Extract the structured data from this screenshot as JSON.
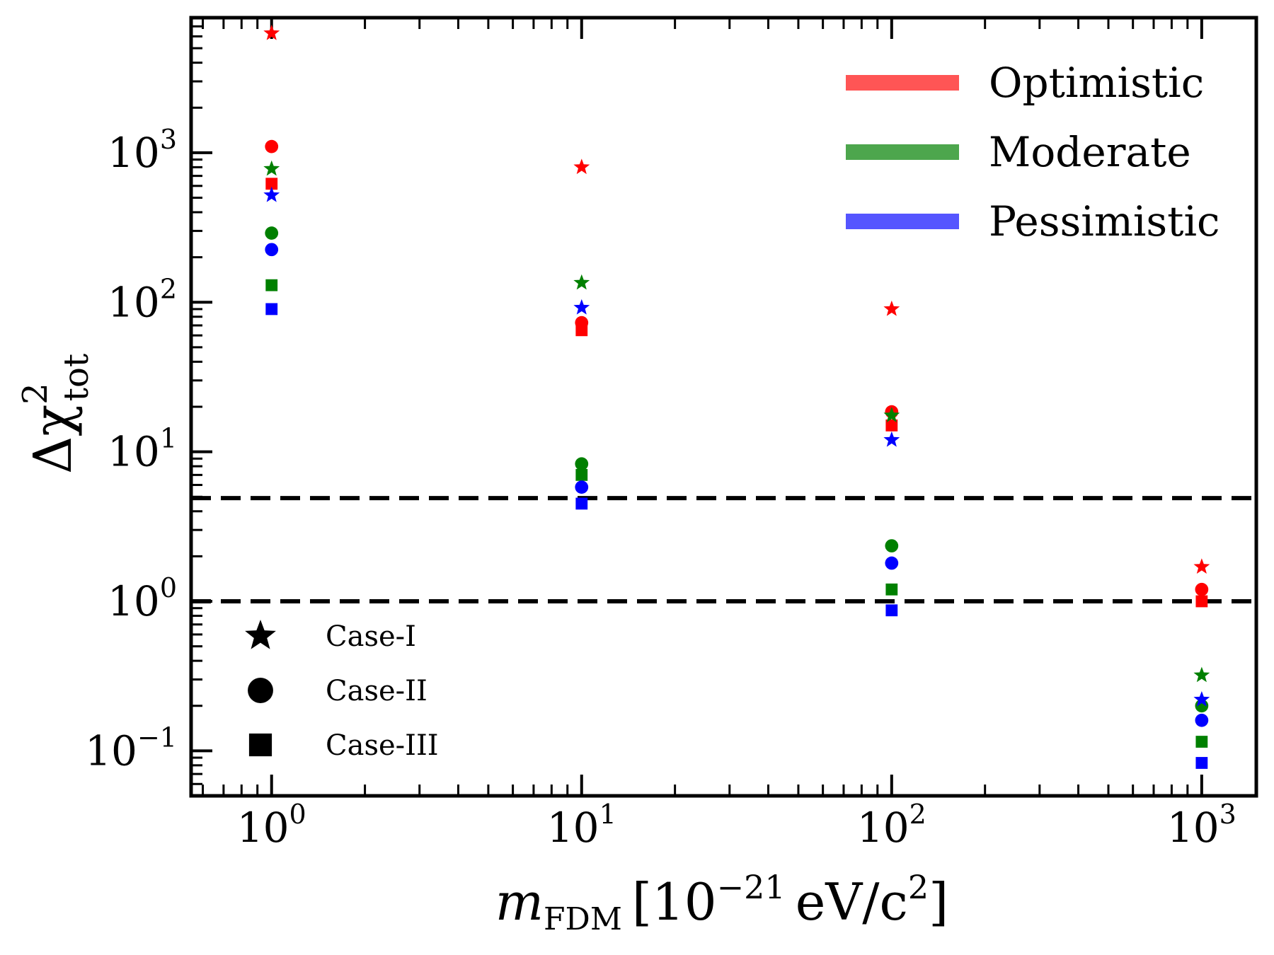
{
  "chart_data": {
    "type": "scatter",
    "xscale": "log",
    "yscale": "log",
    "xlim": [
      0.55,
      1500
    ],
    "ylim": [
      0.05,
      8000
    ],
    "x_ticks": [
      {
        "value": 1,
        "base": "10",
        "exp": "0"
      },
      {
        "value": 10,
        "base": "10",
        "exp": "1"
      },
      {
        "value": 100,
        "base": "10",
        "exp": "2"
      },
      {
        "value": 1000,
        "base": "10",
        "exp": "3"
      }
    ],
    "y_ticks": [
      {
        "value": 0.1,
        "base": "10",
        "exp": "−1"
      },
      {
        "value": 1,
        "base": "10",
        "exp": "0"
      },
      {
        "value": 10,
        "base": "10",
        "exp": "1"
      },
      {
        "value": 100,
        "base": "10",
        "exp": "2"
      },
      {
        "value": 1000,
        "base": "10",
        "exp": "3"
      }
    ],
    "xlabel": {
      "main": "m",
      "sub": "FDM",
      "bracket_open": "[",
      "unit_base": "10",
      "unit_exp": "−21",
      "unit_rest": "eV/c",
      "unit_exp2": "2",
      "bracket_close": "]"
    },
    "ylabel": {
      "prefix": "Δχ",
      "sup": "2",
      "sub": "tot"
    },
    "hlines": [
      4.9,
      1.0
    ],
    "grid": false,
    "colors": {
      "Optimistic": "#ff0000",
      "Moderate": "#008000",
      "Pessimistic": "#0000ff"
    },
    "legend_colors": {
      "Optimistic": "#ff5555",
      "Moderate": "#4da64d",
      "Pessimistic": "#5555ff"
    },
    "legend_scenarios": [
      "Optimistic",
      "Moderate",
      "Pessimistic"
    ],
    "legend_scenarios_position": "top-right",
    "legend_markers": [
      {
        "label": "Case-I",
        "marker": "star"
      },
      {
        "label": "Case-II",
        "marker": "circle"
      },
      {
        "label": "Case-III",
        "marker": "square"
      }
    ],
    "legend_markers_position": "bottom-left",
    "series": [
      {
        "scenario": "Optimistic",
        "case": "Case-I",
        "marker": "star",
        "x": [
          1,
          10,
          100,
          1000
        ],
        "y": [
          6300,
          800,
          90,
          1.7
        ]
      },
      {
        "scenario": "Optimistic",
        "case": "Case-II",
        "marker": "circle",
        "x": [
          1,
          10,
          100,
          1000
        ],
        "y": [
          1100,
          73,
          18.5,
          1.2
        ]
      },
      {
        "scenario": "Optimistic",
        "case": "Case-III",
        "marker": "square",
        "x": [
          1,
          10,
          100,
          1000
        ],
        "y": [
          620,
          65,
          15,
          1.0
        ]
      },
      {
        "scenario": "Moderate",
        "case": "Case-I",
        "marker": "star",
        "x": [
          1,
          10,
          100,
          1000
        ],
        "y": [
          780,
          135,
          17.5,
          0.32
        ]
      },
      {
        "scenario": "Moderate",
        "case": "Case-II",
        "marker": "circle",
        "x": [
          1,
          10,
          100,
          1000
        ],
        "y": [
          290,
          8.3,
          2.35,
          0.2
        ]
      },
      {
        "scenario": "Moderate",
        "case": "Case-III",
        "marker": "square",
        "x": [
          1,
          10,
          100,
          1000
        ],
        "y": [
          130,
          7.0,
          1.2,
          0.115
        ]
      },
      {
        "scenario": "Pessimistic",
        "case": "Case-I",
        "marker": "star",
        "x": [
          1,
          10,
          100,
          1000
        ],
        "y": [
          520,
          92,
          12,
          0.22
        ]
      },
      {
        "scenario": "Pessimistic",
        "case": "Case-II",
        "marker": "circle",
        "x": [
          1,
          10,
          100,
          1000
        ],
        "y": [
          225,
          5.8,
          1.8,
          0.16
        ]
      },
      {
        "scenario": "Pessimistic",
        "case": "Case-III",
        "marker": "square",
        "x": [
          1,
          10,
          100,
          1000
        ],
        "y": [
          90,
          4.5,
          0.87,
          0.083
        ]
      }
    ]
  }
}
